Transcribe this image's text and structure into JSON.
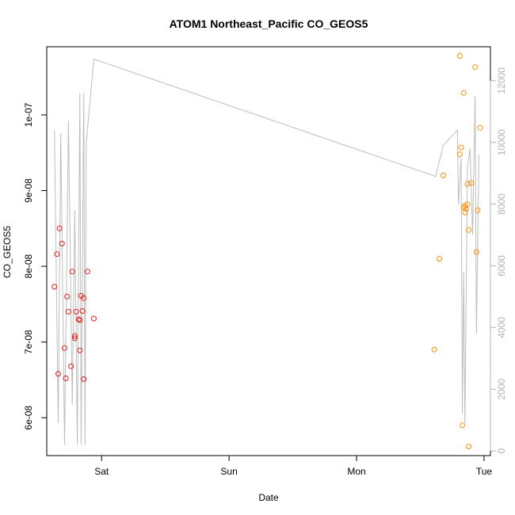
{
  "chart_data": {
    "type": "scatter",
    "title": "ATOM1 Northeast_Pacific CO_GEOS5",
    "xlabel": "Date",
    "ylabel": "CO_GEOS5",
    "x_tick_labels": [
      "Sat",
      "Sun",
      "Mon",
      "Tue"
    ],
    "x_tick_values": [
      1,
      2,
      3,
      4
    ],
    "xlim": [
      0.57,
      4.05
    ],
    "ylim_left": [
      5.5e-08,
      1.09e-07
    ],
    "y_ticks_left": [
      {
        "value": 6e-08,
        "label": "6e-08"
      },
      {
        "value": 7e-08,
        "label": "7e-08"
      },
      {
        "value": 8e-08,
        "label": "8e-08"
      },
      {
        "value": 9e-08,
        "label": "9e-08"
      },
      {
        "value": 1e-07,
        "label": "1e-07"
      }
    ],
    "ylim_right": [
      -150,
      13100
    ],
    "y_ticks_right": [
      {
        "value": 0,
        "label": "0"
      },
      {
        "value": 2000,
        "label": "2000"
      },
      {
        "value": 4000,
        "label": "4000"
      },
      {
        "value": 6000,
        "label": "6000"
      },
      {
        "value": 8000,
        "label": "8000"
      },
      {
        "value": 10000,
        "label": "10000"
      },
      {
        "value": 12000,
        "label": "12000"
      }
    ],
    "series": [
      {
        "color": "#e41a1c",
        "points": [
          {
            "x": 0.63,
            "y": 7.73e-08
          },
          {
            "x": 0.65,
            "y": 8.16e-08
          },
          {
            "x": 0.66,
            "y": 6.58e-08
          },
          {
            "x": 0.67,
            "y": 8.5e-08
          },
          {
            "x": 0.69,
            "y": 8.3e-08
          },
          {
            "x": 0.71,
            "y": 6.92e-08
          },
          {
            "x": 0.72,
            "y": 6.52e-08
          },
          {
            "x": 0.73,
            "y": 7.6e-08
          },
          {
            "x": 0.74,
            "y": 7.4e-08
          },
          {
            "x": 0.76,
            "y": 6.68e-08
          },
          {
            "x": 0.77,
            "y": 7.93e-08
          },
          {
            "x": 0.79,
            "y": 7.05e-08
          },
          {
            "x": 0.79,
            "y": 7.08e-08
          },
          {
            "x": 0.8,
            "y": 7.4e-08
          },
          {
            "x": 0.82,
            "y": 7.3e-08
          },
          {
            "x": 0.83,
            "y": 7.29e-08
          },
          {
            "x": 0.83,
            "y": 6.89e-08
          },
          {
            "x": 0.84,
            "y": 7.61e-08
          },
          {
            "x": 0.85,
            "y": 7.41e-08
          },
          {
            "x": 0.86,
            "y": 7.58e-08
          },
          {
            "x": 0.86,
            "y": 6.51e-08
          },
          {
            "x": 0.89,
            "y": 7.93e-08
          },
          {
            "x": 0.94,
            "y": 7.31e-08
          }
        ]
      },
      {
        "color": "#ff8c00",
        "points": [
          {
            "x": 3.61,
            "y": 6.9e-08
          },
          {
            "x": 3.65,
            "y": 8.1e-08
          },
          {
            "x": 3.68,
            "y": 9.2e-08
          },
          {
            "x": 3.81,
            "y": 1.078e-07
          },
          {
            "x": 3.81,
            "y": 9.48e-08
          },
          {
            "x": 3.82,
            "y": 9.57e-08
          },
          {
            "x": 3.83,
            "y": 5.9e-08
          },
          {
            "x": 3.84,
            "y": 1.029e-07
          },
          {
            "x": 3.84,
            "y": 8.78e-08
          },
          {
            "x": 3.85,
            "y": 8.71e-08
          },
          {
            "x": 3.85,
            "y": 8.8e-08
          },
          {
            "x": 3.86,
            "y": 8.76e-08
          },
          {
            "x": 3.87,
            "y": 8.82e-08
          },
          {
            "x": 3.87,
            "y": 9.09e-08
          },
          {
            "x": 3.88,
            "y": 8.48e-08
          },
          {
            "x": 3.88,
            "y": 5.62e-08
          },
          {
            "x": 3.9,
            "y": 9.1e-08
          },
          {
            "x": 3.93,
            "y": 1.063e-07
          },
          {
            "x": 3.94,
            "y": 8.19e-08
          },
          {
            "x": 3.95,
            "y": 8.74e-08
          },
          {
            "x": 3.97,
            "y": 9.83e-08
          }
        ]
      },
      {
        "type": "line",
        "axis": "right",
        "color": "#bdbdbd",
        "points": [
          {
            "x": 0.63,
            "y": 10400
          },
          {
            "x": 0.66,
            "y": 900
          },
          {
            "x": 0.68,
            "y": 10300
          },
          {
            "x": 0.71,
            "y": 200
          },
          {
            "x": 0.74,
            "y": 10700
          },
          {
            "x": 0.77,
            "y": 1500
          },
          {
            "x": 0.79,
            "y": 7800
          },
          {
            "x": 0.81,
            "y": 200
          },
          {
            "x": 0.83,
            "y": 11600
          },
          {
            "x": 0.84,
            "y": 200
          },
          {
            "x": 0.86,
            "y": 11600
          },
          {
            "x": 0.87,
            "y": 200
          },
          {
            "x": 0.88,
            "y": 10000
          },
          {
            "x": 0.94,
            "y": 12700
          },
          {
            "x": 3.62,
            "y": 8900
          },
          {
            "x": 3.68,
            "y": 9900
          },
          {
            "x": 3.79,
            "y": 10400
          },
          {
            "x": 3.8,
            "y": 8000
          },
          {
            "x": 3.82,
            "y": 9500
          },
          {
            "x": 3.83,
            "y": 1200
          },
          {
            "x": 3.84,
            "y": 5800
          },
          {
            "x": 3.85,
            "y": 900
          },
          {
            "x": 3.87,
            "y": 9200
          },
          {
            "x": 3.89,
            "y": 9800
          },
          {
            "x": 3.91,
            "y": 7000
          },
          {
            "x": 3.93,
            "y": 11500
          },
          {
            "x": 3.94,
            "y": 3800
          },
          {
            "x": 3.96,
            "y": 9600
          }
        ]
      }
    ]
  }
}
